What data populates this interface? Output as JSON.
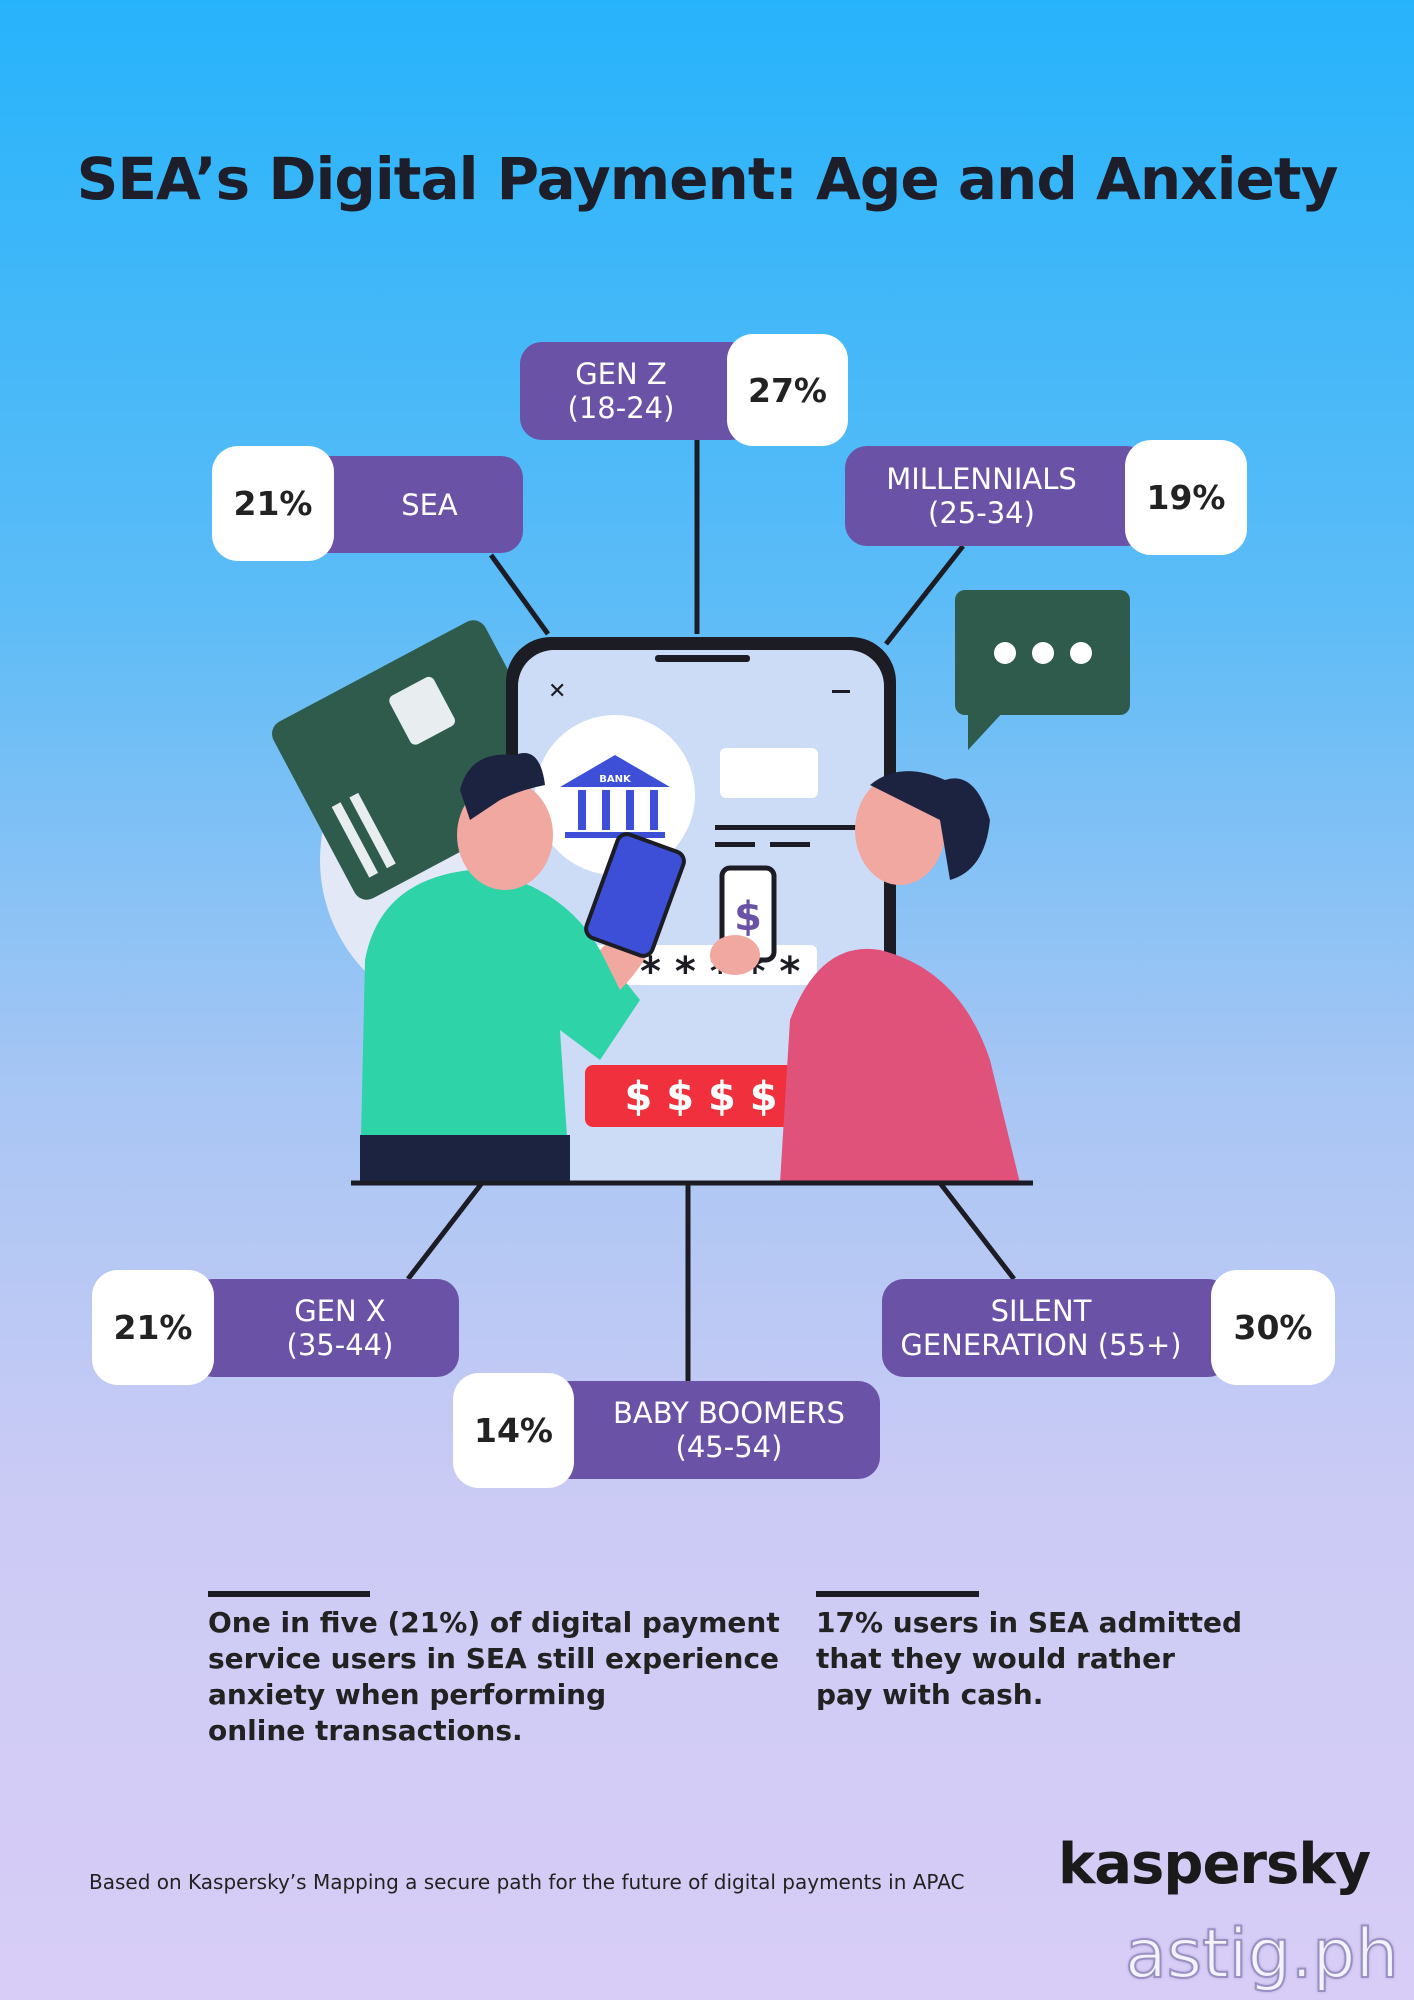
{
  "title": "SEA’s Digital Payment: Age and Anxiety",
  "groups": [
    {
      "label1": "SEA",
      "label2": "",
      "value": "21%"
    },
    {
      "label1": "GEN Z",
      "label2": "(18-24)",
      "value": "27%"
    },
    {
      "label1": "MILLENNIALS",
      "label2": "(25-34)",
      "value": "19%"
    },
    {
      "label1": "GEN X",
      "label2": "(35-44)",
      "value": "21%"
    },
    {
      "label1": "BABY BOOMERS",
      "label2": "(45-54)",
      "value": "14%"
    },
    {
      "label1": "SILENT",
      "label2": "GENERATION (55+)",
      "value": "30%"
    }
  ],
  "illustration": {
    "screen_password": "* * * * *",
    "screen_amount": "$ $ $ $",
    "bank_sign": "BANK"
  },
  "notes": [
    {
      "lines": [
        "One in five (21%) of digital payment",
        "service users in SEA still experience",
        "anxiety when performing",
        "online transactions."
      ]
    },
    {
      "lines": [
        "17% users in SEA admitted",
        "that they would rather",
        "pay with cash."
      ]
    }
  ],
  "source": "Based on Kaspersky’s Mapping a secure path for the future of digital payments in APAC",
  "logo": "kaspersky",
  "watermark": "astig.ph",
  "colors": {
    "purple": "#6a52a6",
    "sky": "#27b3fb",
    "lavender": "#d8cdf6"
  }
}
